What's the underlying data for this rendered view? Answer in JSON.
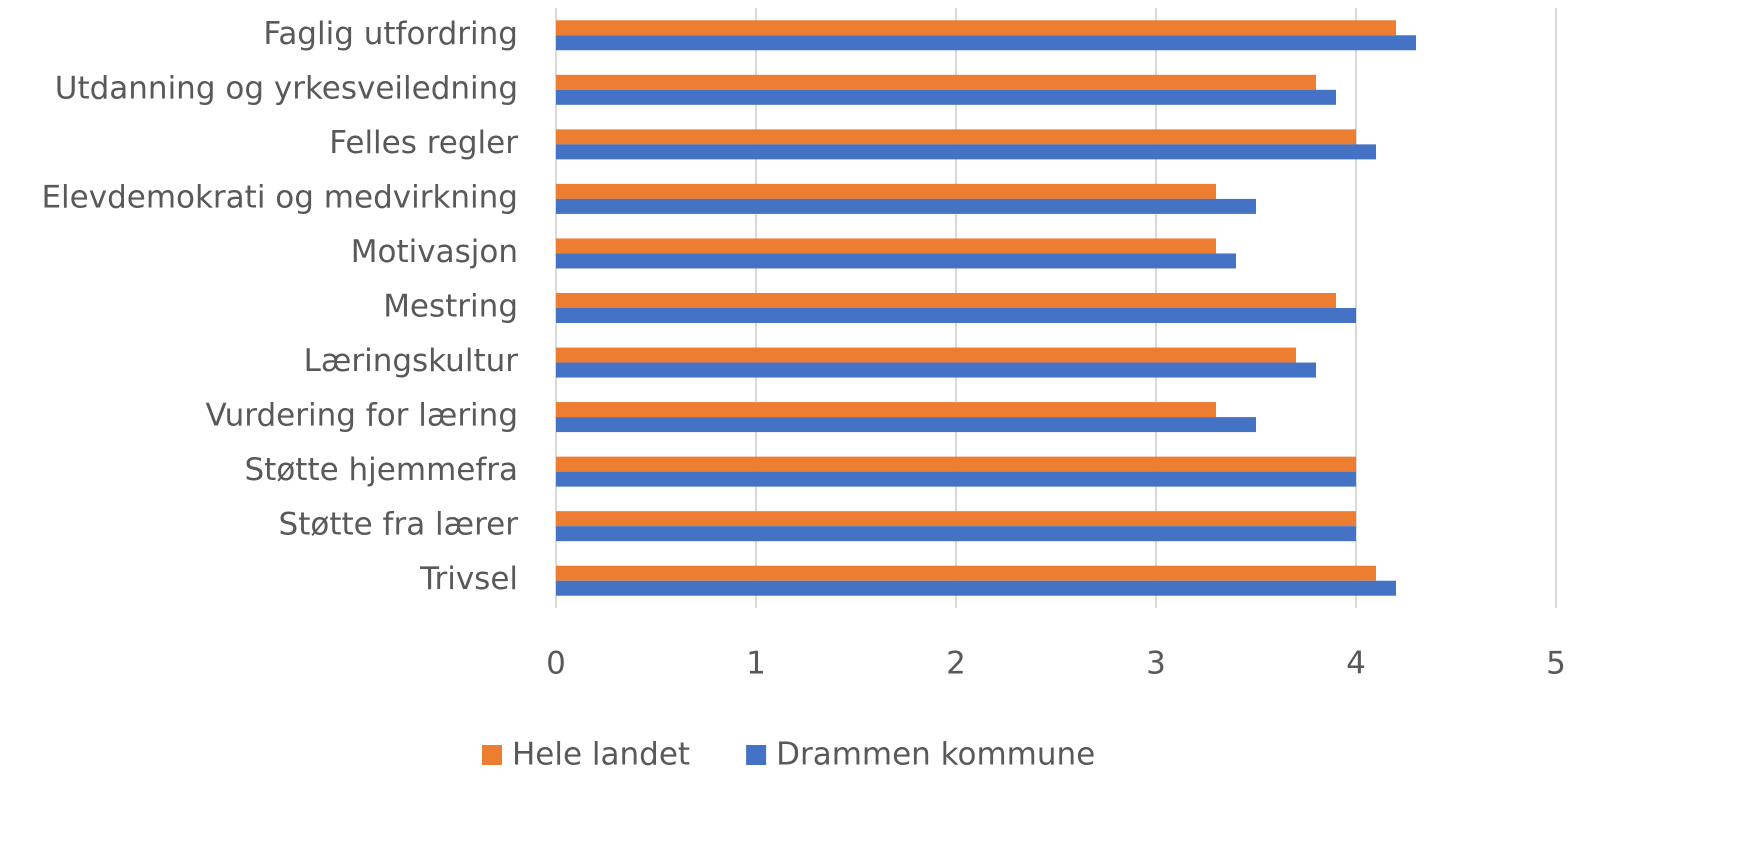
{
  "chart_data": {
    "type": "barh",
    "categories": [
      "Faglig utfordring",
      "Utdanning og yrkesveiledning",
      "Felles regler",
      "Elevdemokrati og medvirkning",
      "Motivasjon",
      "Mestring",
      "Læringskultur",
      "Vurdering for læring",
      "Støtte hjemmefra",
      "Støtte fra lærer",
      "Trivsel"
    ],
    "series": [
      {
        "name": "Hele landet",
        "color": "#ed7d31",
        "values": [
          4.2,
          3.8,
          4.0,
          3.3,
          3.3,
          3.9,
          3.7,
          3.3,
          4.0,
          4.0,
          4.1
        ]
      },
      {
        "name": "Drammen kommune",
        "color": "#4472c4",
        "values": [
          4.3,
          3.9,
          4.1,
          3.5,
          3.4,
          4.0,
          3.8,
          3.5,
          4.0,
          4.0,
          4.2
        ]
      }
    ],
    "xlim": [
      0,
      5
    ],
    "xticks": [
      0,
      1,
      2,
      3,
      4,
      5
    ],
    "grid": true,
    "legend": "bottom"
  }
}
